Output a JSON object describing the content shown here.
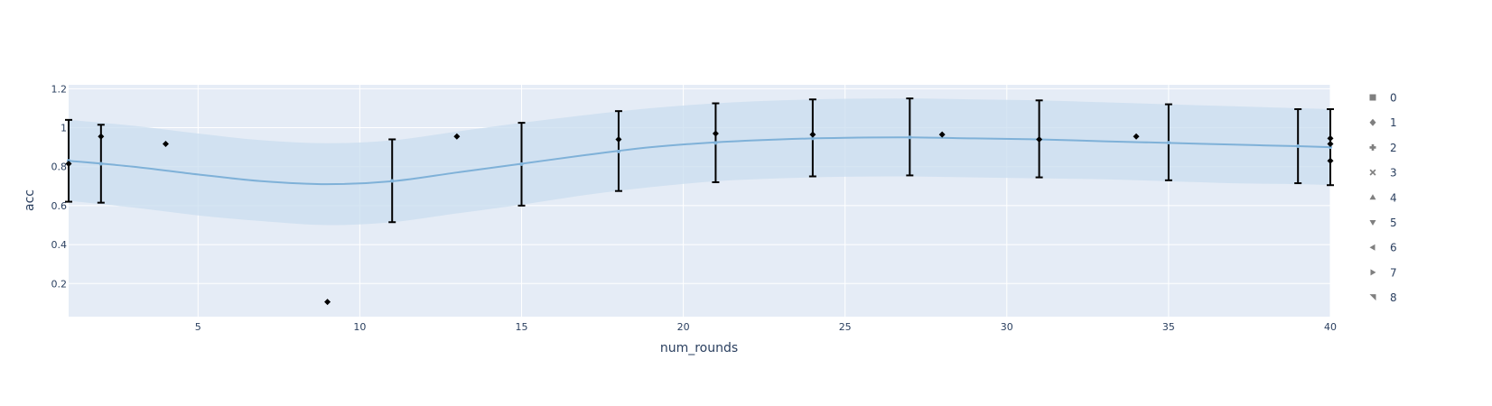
{
  "chart_data": {
    "type": "scatter",
    "xlabel": "num_rounds",
    "ylabel": "acc",
    "xlim": [
      1,
      40
    ],
    "ylim": [
      0.03,
      1.22
    ],
    "x_ticks": [
      5,
      10,
      15,
      20,
      25,
      30,
      35,
      40
    ],
    "y_ticks": [
      0.2,
      0.4,
      0.6,
      0.8,
      1,
      1.2
    ],
    "grid": true,
    "legend_position": "right",
    "legend": [
      "0",
      "1",
      "2",
      "3",
      "4",
      "5",
      "6",
      "7",
      "8"
    ],
    "fit_mean": {
      "x": [
        1,
        3,
        5,
        7,
        9,
        11,
        13,
        15,
        17,
        19,
        21,
        23,
        25,
        27,
        29,
        31,
        33,
        35,
        37,
        39,
        40
      ],
      "y": [
        0.83,
        0.8,
        0.76,
        0.725,
        0.71,
        0.725,
        0.77,
        0.815,
        0.86,
        0.9,
        0.925,
        0.94,
        0.948,
        0.95,
        0.945,
        0.94,
        0.93,
        0.922,
        0.913,
        0.905,
        0.9
      ]
    },
    "fit_band": {
      "upper": [
        1.04,
        1.01,
        0.97,
        0.935,
        0.92,
        0.935,
        0.98,
        1.025,
        1.065,
        1.1,
        1.125,
        1.14,
        1.148,
        1.15,
        1.145,
        1.14,
        1.13,
        1.12,
        1.11,
        1.1,
        1.095
      ],
      "lower": [
        0.625,
        0.59,
        0.55,
        0.52,
        0.5,
        0.515,
        0.56,
        0.605,
        0.655,
        0.695,
        0.725,
        0.74,
        0.748,
        0.75,
        0.745,
        0.74,
        0.735,
        0.725,
        0.715,
        0.71,
        0.705
      ]
    },
    "error_bars": [
      {
        "x": 1,
        "y": 0.83,
        "low": 0.62,
        "high": 1.04
      },
      {
        "x": 2,
        "y": 0.815,
        "low": 0.615,
        "high": 1.015
      },
      {
        "x": 11,
        "y": 0.727,
        "low": 0.515,
        "high": 0.94
      },
      {
        "x": 15,
        "y": 0.813,
        "low": 0.6,
        "high": 1.025
      },
      {
        "x": 18,
        "y": 0.878,
        "low": 0.675,
        "high": 1.085
      },
      {
        "x": 21,
        "y": 0.922,
        "low": 0.72,
        "high": 1.125
      },
      {
        "x": 24,
        "y": 0.945,
        "low": 0.75,
        "high": 1.145
      },
      {
        "x": 27,
        "y": 0.95,
        "low": 0.755,
        "high": 1.15
      },
      {
        "x": 31,
        "y": 0.942,
        "low": 0.745,
        "high": 1.14
      },
      {
        "x": 35,
        "y": 0.923,
        "low": 0.73,
        "high": 1.12
      },
      {
        "x": 39,
        "y": 0.905,
        "low": 0.715,
        "high": 1.095
      },
      {
        "x": 40,
        "y": 0.9,
        "low": 0.705,
        "high": 1.095
      }
    ],
    "points": [
      {
        "x": 1,
        "y": 0.815
      },
      {
        "x": 2,
        "y": 0.955
      },
      {
        "x": 4,
        "y": 0.917
      },
      {
        "x": 9,
        "y": 0.106
      },
      {
        "x": 13,
        "y": 0.955
      },
      {
        "x": 18,
        "y": 0.94
      },
      {
        "x": 21,
        "y": 0.97
      },
      {
        "x": 24,
        "y": 0.965
      },
      {
        "x": 28,
        "y": 0.965
      },
      {
        "x": 31,
        "y": 0.94
      },
      {
        "x": 34,
        "y": 0.955
      },
      {
        "x": 40,
        "y": 0.945
      },
      {
        "x": 40,
        "y": 0.917
      },
      {
        "x": 40,
        "y": 0.83
      }
    ],
    "colors": {
      "plot_bg": "#e5ecf6",
      "grid": "#ffffff",
      "band": "#c9ddef",
      "line": "#7fb1d8",
      "marker": "#000000",
      "legend_marker": "#7f7f7f",
      "text": "#2a3f5f"
    }
  }
}
